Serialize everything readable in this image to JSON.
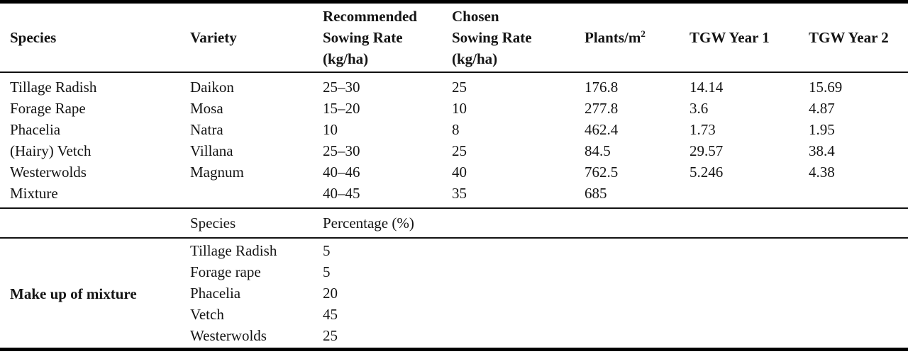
{
  "colors": {
    "background": "#ffffff",
    "text": "#141414",
    "rule": "#000000"
  },
  "table": {
    "header": {
      "species": "Species",
      "variety": "Variety",
      "recommended_lines": [
        "Recommended",
        "Sowing Rate",
        "(kg/ha)"
      ],
      "chosen_lines": [
        "Chosen",
        "Sowing Rate",
        "(kg/ha)"
      ],
      "plants_base": "Plants/m",
      "plants_sup": "2",
      "tgw_year1": "TGW Year 1",
      "tgw_year2": "TGW Year 2"
    },
    "rows": [
      {
        "species": "Tillage Radish",
        "variety": "Daikon",
        "recommended": "25–30",
        "chosen": "25",
        "plants": "176.8",
        "tgw1": "14.14",
        "tgw2": "15.69"
      },
      {
        "species": "Forage Rape",
        "variety": "Mosa",
        "recommended": "15–20",
        "chosen": "10",
        "plants": "277.8",
        "tgw1": "3.6",
        "tgw2": "4.87"
      },
      {
        "species": "Phacelia",
        "variety": "Natra",
        "recommended": "10",
        "chosen": "8",
        "plants": "462.4",
        "tgw1": "1.73",
        "tgw2": "1.95"
      },
      {
        "species": "(Hairy) Vetch",
        "variety": "Villana",
        "recommended": "25–30",
        "chosen": "25",
        "plants": "84.5",
        "tgw1": "29.57",
        "tgw2": "38.4"
      },
      {
        "species": "Westerwolds",
        "variety": "Magnum",
        "recommended": "40–46",
        "chosen": "40",
        "plants": "762.5",
        "tgw1": "5.246",
        "tgw2": "4.38"
      },
      {
        "species": "Mixture",
        "variety": "",
        "recommended": "40–45",
        "chosen": "35",
        "plants": "685",
        "tgw1": "",
        "tgw2": ""
      }
    ],
    "sub_header": {
      "species": "Species",
      "percentage": "Percentage (%)"
    },
    "mixture": {
      "label": "Make up of mixture",
      "rows": [
        {
          "species": "Tillage Radish",
          "percentage": "5"
        },
        {
          "species": "Forage rape",
          "percentage": "5"
        },
        {
          "species": "Phacelia",
          "percentage": "20"
        },
        {
          "species": "Vetch",
          "percentage": "45"
        },
        {
          "species": "Westerwolds",
          "percentage": "25"
        }
      ]
    }
  }
}
